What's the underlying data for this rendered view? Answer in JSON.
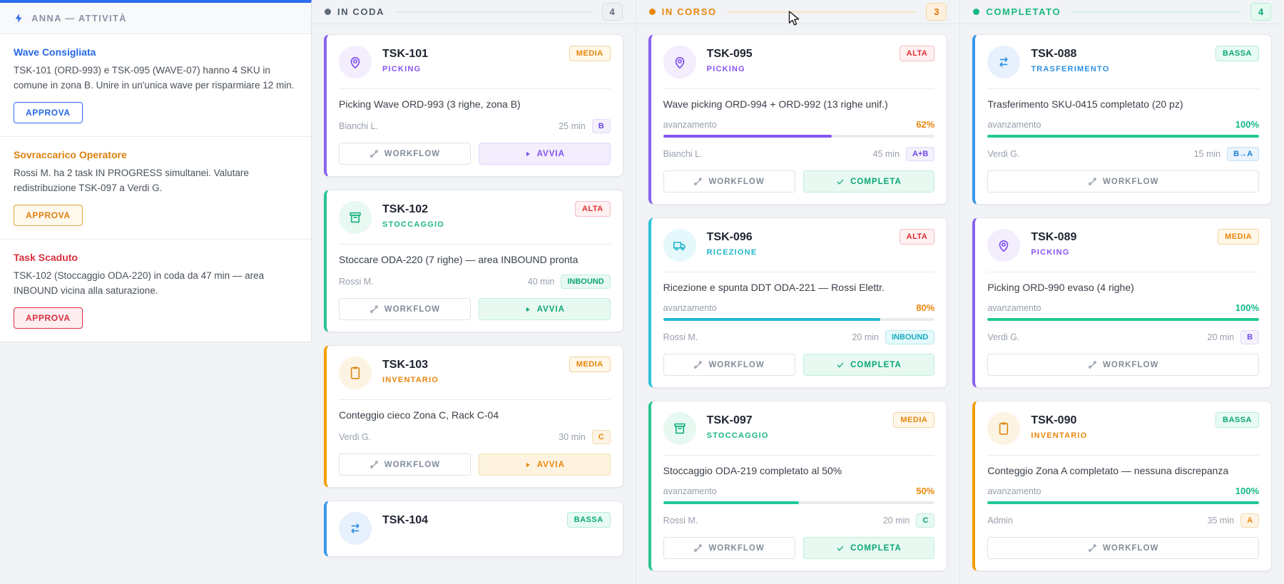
{
  "labels": {
    "progress": "avanzamento",
    "workflow": "WORKFLOW",
    "avvia": "AVVIA",
    "completa": "COMPLETA"
  },
  "colors": {
    "accent_blue": "#2f6bed",
    "picking_purple": "#8655f0",
    "stoccaggio_green": "#1db783",
    "inventario_orange": "#e8860d",
    "ricezione_cyan": "#1fb6cc",
    "trasferimento_blue": "#2e90e5",
    "alta_red": "#e03131",
    "media_orange": "#e8860d",
    "bassa_green": "#0ca678"
  },
  "sidebar": {
    "title": "ANNA — ATTIVITÀ",
    "items": [
      {
        "title": "Wave Consigliata",
        "body": "TSK-101 (ORD-993) e TSK-095 (WAVE-07) hanno 4 SKU in comune in zona B. Unire in un'unica wave per risparmiare 12 min.",
        "action": "APPROVA",
        "tone": "blue"
      },
      {
        "title": "Sovraccarico Operatore",
        "body": "Rossi M. ha 2 task IN PROGRESS simultanei. Valutare redistribuzione TSK-097 a Verdi G.",
        "action": "APPROVA",
        "tone": "orange"
      },
      {
        "title": "Task Scaduto",
        "body": "TSK-102 (Stoccaggio ODA-220) in coda da 47 min — area INBOUND vicina alla saturazione.",
        "action": "APPROVA",
        "tone": "red"
      }
    ]
  },
  "board": {
    "columns": [
      {
        "label": "IN CODA",
        "count": "4",
        "tone": "gray",
        "tasks": [
          {
            "id": "TSK-101",
            "type": "PICKING",
            "typeKey": "picking",
            "priority": "MEDIA",
            "priorityTone": "orange",
            "desc": "Picking Wave ORD-993 (3 righe, zona B)",
            "assignee": "Bianchi L.",
            "time": "25 min",
            "zone": "B",
            "zoneTone": "purple",
            "secondary": "avvia"
          },
          {
            "id": "TSK-102",
            "type": "STOCCAGGIO",
            "typeKey": "stoccaggio",
            "priority": "ALTA",
            "priorityTone": "red",
            "desc": "Stoccare ODA-220 (7 righe) — area INBOUND pronta",
            "assignee": "Rossi M.",
            "time": "40 min",
            "zone": "INBOUND",
            "zoneTone": "green",
            "secondary": "avvia"
          },
          {
            "id": "TSK-103",
            "type": "INVENTARIO",
            "typeKey": "inventario",
            "priority": "MEDIA",
            "priorityTone": "orange",
            "desc": "Conteggio cieco Zona C, Rack C-04",
            "assignee": "Verdi G.",
            "time": "30 min",
            "zone": "C",
            "zoneTone": "orange",
            "secondary": "avvia"
          },
          {
            "id": "TSK-104",
            "typeKey": "trasferimento",
            "priority": "BASSA",
            "priorityTone": "green",
            "partial": true
          }
        ]
      },
      {
        "label": "IN CORSO",
        "count": "3",
        "tone": "orange",
        "tasks": [
          {
            "id": "TSK-095",
            "type": "PICKING",
            "typeKey": "picking",
            "priority": "ALTA",
            "priorityTone": "red",
            "desc": "Wave picking ORD-994 + ORD-992 (13 righe unif.)",
            "progress": 62,
            "pct": "62%",
            "pctTone": "orange",
            "barTone": "purple",
            "assignee": "Bianchi L.",
            "time": "45 min",
            "zone": "A+B",
            "zoneTone": "purple",
            "secondary": "completa"
          },
          {
            "id": "TSK-096",
            "type": "RICEZIONE",
            "typeKey": "ricezione",
            "priority": "ALTA",
            "priorityTone": "red",
            "desc": "Ricezione e spunta DDT ODA-221 — Rossi Elettr.",
            "progress": 80,
            "pct": "80%",
            "pctTone": "orange",
            "barTone": "cyan",
            "assignee": "Rossi M.",
            "time": "20 min",
            "zone": "INBOUND",
            "zoneTone": "cyan",
            "secondary": "completa"
          },
          {
            "id": "TSK-097",
            "type": "STOCCAGGIO",
            "typeKey": "stoccaggio",
            "priority": "MEDIA",
            "priorityTone": "orange",
            "desc": "Stoccaggio ODA-219 completato al 50%",
            "progress": 50,
            "pct": "50%",
            "pctTone": "orange",
            "barTone": "green",
            "assignee": "Rossi M.",
            "time": "20 min",
            "zone": "C",
            "zoneTone": "green",
            "secondary": "completa"
          }
        ]
      },
      {
        "label": "COMPLETATO",
        "count": "4",
        "tone": "green",
        "tasks": [
          {
            "id": "TSK-088",
            "type": "TRASFERIMENTO",
            "typeKey": "trasferimento",
            "priority": "BASSA",
            "priorityTone": "green",
            "desc": "Trasferimento SKU-0415 completato (20 pz)",
            "progress": 100,
            "pct": "100%",
            "pctTone": "green",
            "barTone": "green",
            "assignee": "Verdi G.",
            "time": "15 min",
            "zone": "B→A",
            "zoneTone": "blue",
            "secondary": null
          },
          {
            "id": "TSK-089",
            "type": "PICKING",
            "typeKey": "picking",
            "priority": "MEDIA",
            "priorityTone": "orange",
            "desc": "Picking ORD-990 evaso (4 righe)",
            "progress": 100,
            "pct": "100%",
            "pctTone": "green",
            "barTone": "green",
            "assignee": "Verdi G.",
            "time": "20 min",
            "zone": "B",
            "zoneTone": "purple",
            "secondary": null
          },
          {
            "id": "TSK-090",
            "type": "INVENTARIO",
            "typeKey": "inventario",
            "priority": "BASSA",
            "priorityTone": "green",
            "desc": "Conteggio Zona A completato — nessuna discrepanza",
            "progress": 100,
            "pct": "100%",
            "pctTone": "green",
            "barTone": "green",
            "assignee": "Admin",
            "time": "35 min",
            "zone": "A",
            "zoneTone": "orange",
            "secondary": null
          }
        ]
      }
    ]
  }
}
